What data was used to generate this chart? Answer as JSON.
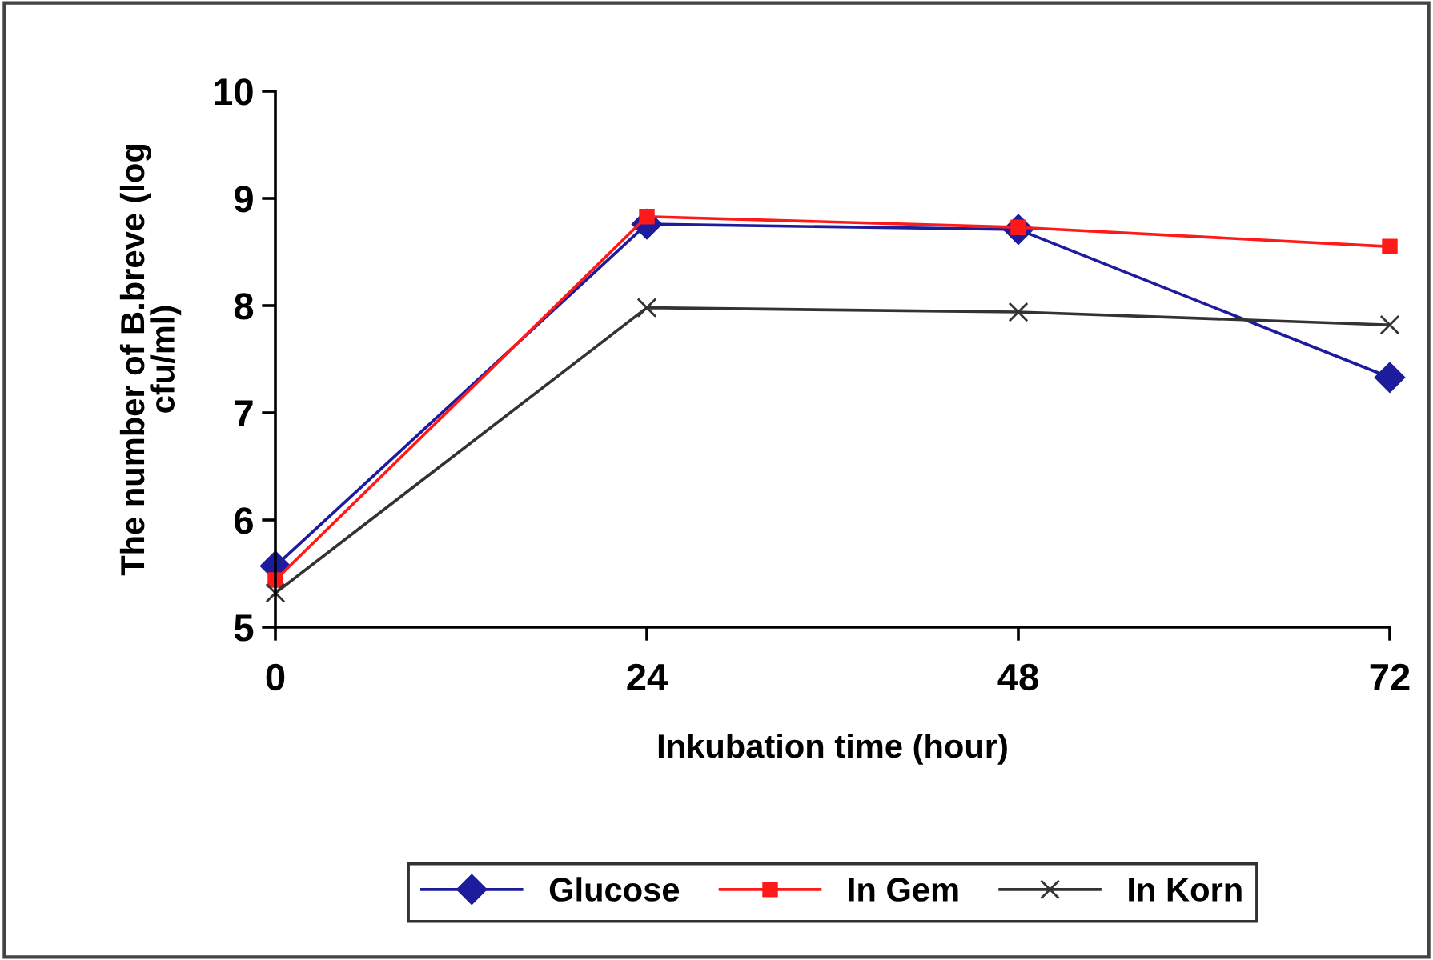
{
  "chart_data": {
    "type": "line",
    "xlabel": "Inkubation time (hour)",
    "ylabel": "The number of B.breve (log\ncfu/ml)",
    "x": [
      0,
      24,
      48,
      72
    ],
    "xlim": [
      0,
      72
    ],
    "xticks": [
      0,
      24,
      48,
      72
    ],
    "ylim": [
      5,
      10
    ],
    "yticks": [
      5,
      6,
      7,
      8,
      9,
      10
    ],
    "grid": false,
    "legend": "bottom",
    "line_style": "solid",
    "series": [
      {
        "name": "Glucose",
        "color": "#1c1c9c",
        "marker": "diamond",
        "values": [
          5.57,
          8.76,
          8.71,
          7.33
        ]
      },
      {
        "name": "In Gem",
        "color": "#ff1a1a",
        "marker": "square",
        "values": [
          5.44,
          8.83,
          8.73,
          8.55
        ]
      },
      {
        "name": "In Korn",
        "color": "#333333",
        "marker": "cross",
        "values": [
          5.32,
          7.98,
          7.94,
          7.82
        ]
      }
    ]
  }
}
